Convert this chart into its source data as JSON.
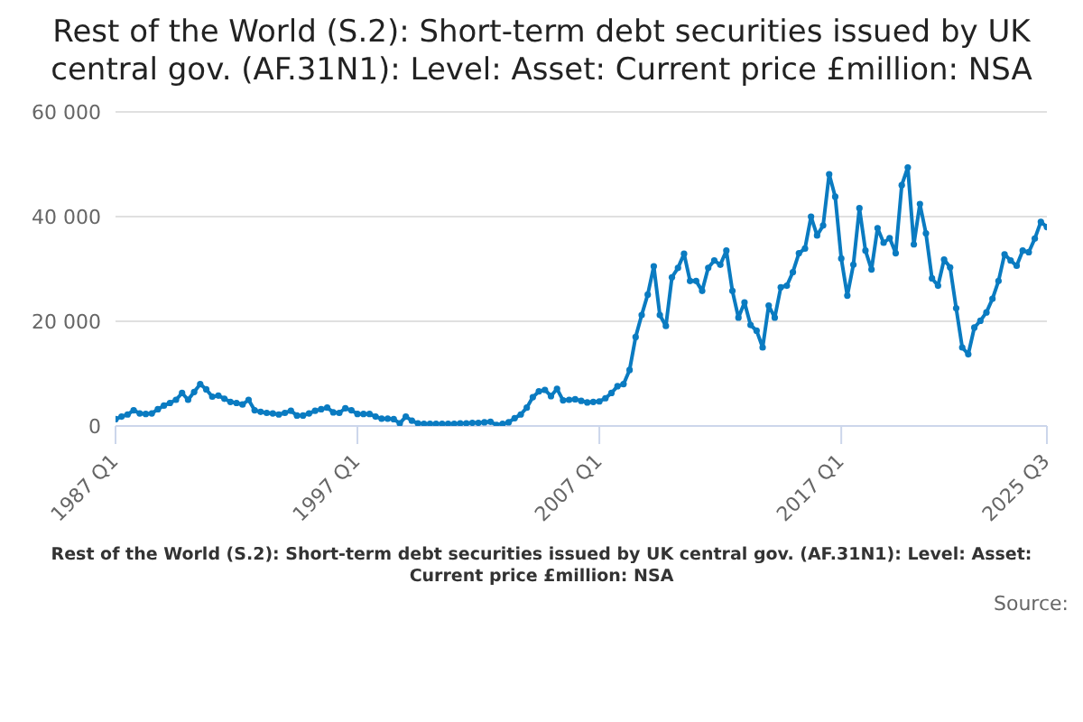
{
  "chart_data": {
    "type": "line",
    "title": "Rest of the World (S.2): Short-term debt securities issued by UK central gov. (AF.31N1): Level: Asset: Current price £million: NSA",
    "categories": [
      "1987 Q1",
      null,
      null,
      null,
      null,
      null,
      null,
      null,
      null,
      null,
      null,
      null,
      null,
      null,
      null,
      null,
      null,
      null,
      null,
      null,
      null,
      null,
      null,
      null,
      null,
      null,
      null,
      null,
      null,
      null,
      null,
      null,
      null,
      null,
      null,
      null,
      null,
      null,
      null,
      null,
      "1997 Q1",
      null,
      null,
      null,
      null,
      null,
      null,
      null,
      null,
      null,
      null,
      null,
      null,
      null,
      null,
      null,
      null,
      null,
      null,
      null,
      null,
      null,
      null,
      null,
      null,
      null,
      null,
      null,
      null,
      null,
      null,
      null,
      null,
      null,
      null,
      null,
      null,
      null,
      null,
      null,
      "2007 Q1",
      null,
      null,
      null,
      null,
      null,
      null,
      null,
      null,
      null,
      null,
      null,
      null,
      null,
      null,
      null,
      null,
      null,
      null,
      null,
      null,
      null,
      null,
      null,
      null,
      null,
      null,
      null,
      null,
      null,
      null,
      null,
      null,
      null,
      null,
      null,
      null,
      null,
      null,
      null,
      "2017 Q1",
      null,
      null,
      null,
      null,
      null,
      null,
      null,
      null,
      null,
      null,
      null,
      null,
      null,
      null,
      null,
      null,
      null,
      null,
      null,
      null,
      null,
      null,
      null,
      null,
      null,
      null,
      null,
      null,
      null,
      null,
      null,
      null,
      null,
      "2025 Q3"
    ],
    "series": [
      {
        "color": "#0a7bc1",
        "values": [
          1300,
          1800,
          2200,
          3000,
          2400,
          2300,
          2400,
          3200,
          3900,
          4400,
          5000,
          6300,
          5000,
          6500,
          8000,
          7000,
          5600,
          5800,
          5200,
          4600,
          4400,
          4100,
          5000,
          3000,
          2700,
          2500,
          2400,
          2200,
          2500,
          2900,
          2000,
          2000,
          2400,
          2900,
          3200,
          3500,
          2600,
          2500,
          3400,
          3000,
          2300,
          2300,
          2300,
          1800,
          1400,
          1400,
          1300,
          500,
          1800,
          1000,
          500,
          400,
          400,
          400,
          400,
          400,
          400,
          500,
          500,
          600,
          600,
          700,
          800,
          200,
          400,
          700,
          1500,
          2200,
          3500,
          5500,
          6600,
          6900,
          5700,
          7100,
          4900,
          5000,
          5100,
          4800,
          4500,
          4600,
          4700,
          5300,
          6300,
          7600,
          8000,
          10700,
          17000,
          21200,
          25100,
          30500,
          21200,
          19100,
          28400,
          30200,
          32900,
          27700,
          27700,
          25800,
          30200,
          31600,
          30800,
          33500,
          25800,
          20700,
          23600,
          19300,
          18200,
          15000,
          23000,
          20700,
          26500,
          26800,
          29400,
          33000,
          33900,
          40000,
          36400,
          38300,
          48100,
          43800,
          32000,
          24900,
          30800,
          41600,
          33500,
          29900,
          37800,
          35000,
          35900,
          33000,
          46000,
          49400,
          34700,
          42400,
          36800,
          28200,
          26800,
          31800,
          30300,
          22500,
          15000,
          13700,
          18800,
          20100,
          21700,
          24300,
          27700,
          32800,
          31600,
          30600,
          33500,
          33200,
          35800,
          39000,
          38000
        ]
      }
    ],
    "ylim": [
      0,
      60000
    ],
    "yticks": [
      0,
      {
        "value": 20000,
        "label": "20 000"
      },
      {
        "value": 40000,
        "label": "40 000"
      },
      {
        "value": 60000,
        "label": "60 000"
      }
    ],
    "grid": "y",
    "marker": "circle",
    "line_style": "solid",
    "legend": false,
    "annotations": [
      "Rest of the World (S.2): Short-term debt securities issued by UK central gov. (AF.31N1): Level: Asset: Current price £million: NSA",
      "Source:"
    ]
  }
}
